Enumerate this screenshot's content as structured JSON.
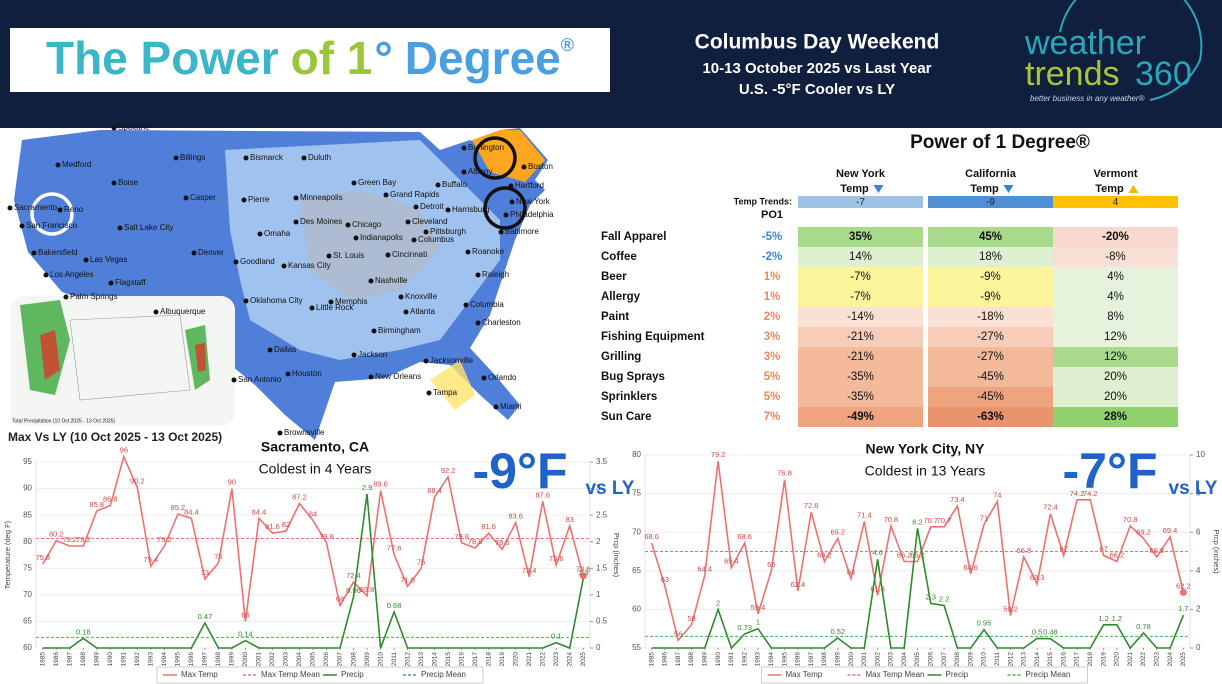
{
  "header": {
    "title_parts": [
      {
        "text": "The Power",
        "color": "#3bb6c8"
      },
      {
        "text": "of 1",
        "color": "#9cc63a"
      },
      {
        "text": "°",
        "color": "#4a9fe0"
      },
      {
        "text": "Degree",
        "color": "#4a9fe0"
      },
      {
        "text": "®",
        "color": "#4a9fe0"
      }
    ],
    "headline": "Columbus Day Weekend",
    "subline1": "10-13 October 2025 vs Last Year",
    "subline2": "U.S. -5°F Cooler vs LY",
    "logo": {
      "word1": "weather",
      "word2": "trends",
      "word3": "360",
      "tagline": "better business in any weather®"
    }
  },
  "map": {
    "cities": [
      "Spokane",
      "Medford",
      "Boise",
      "Billings",
      "Bismarck",
      "Duluth",
      "Burlington",
      "Boston",
      "Albany",
      "Hartford",
      "Green Bay",
      "Grand Rapids",
      "Buffalo",
      "New York",
      "Casper",
      "Minneapolis",
      "Detroit",
      "Harrisburg",
      "Philadelphia",
      "Reno",
      "Sacramento",
      "San Francisco",
      "Salt Lake City",
      "Pierre",
      "Cleveland",
      "Des Moines",
      "Chicago",
      "Omaha",
      "Pittsburgh",
      "Baltimore",
      "Indianapolis",
      "Columbus",
      "Denver",
      "Cincinnati",
      "Goodland",
      "Kansas City",
      "St. Louis",
      "Bakersfield",
      "Las Vegas",
      "Los Angeles",
      "Roanoke",
      "Flagstaff",
      "Nashville",
      "Knoxville",
      "Raleigh",
      "Palm Springs",
      "Albuquerque",
      "Oklahoma City",
      "Little Rock",
      "Memphis",
      "Atlanta",
      "Columbia",
      "Birmingham",
      "Charleston",
      "Dallas",
      "Jackson",
      "Houston",
      "San Antonio",
      "New Orleans",
      "Jacksonville",
      "Orlando",
      "Tampa",
      "Miami",
      "Brownsville"
    ],
    "inset_caption": "Total Precipitation (10 Oct 2025 - 13 Oct 2025)"
  },
  "table": {
    "title": "Power of 1 Degree®",
    "columns": [
      {
        "name": "New York",
        "sub": "Temp",
        "trend": "-7",
        "color": "#9dc3e6",
        "arrow": "down",
        "arrow_color": "#3a7fd0"
      },
      {
        "name": "California",
        "sub": "Temp",
        "trend": "-9",
        "color": "#4f8fd6",
        "arrow": "down",
        "arrow_color": "#3a7fd0"
      },
      {
        "name": "Vermont",
        "sub": "Temp",
        "trend": "4",
        "color": "#ffc000",
        "arrow": "up",
        "arrow_color": "#f5b800"
      }
    ],
    "trend_label": "Temp Trends:",
    "po1_label": "PO1",
    "rows": [
      {
        "name": "Fall Apparel",
        "po1": "-5%",
        "values": [
          "35%",
          "45%",
          "-20%"
        ],
        "colors": [
          "#a9d98a",
          "#a9d98a",
          "#f9d9cf"
        ],
        "bold": true
      },
      {
        "name": "Coffee",
        "po1": "-2%",
        "values": [
          "14%",
          "18%",
          "-8%"
        ],
        "colors": [
          "#dff0d0",
          "#dff0d0",
          "#f9e0d6"
        ],
        "bold": false
      },
      {
        "name": "Beer",
        "po1": "1%",
        "values": [
          "-7%",
          "-9%",
          "4%"
        ],
        "colors": [
          "#fbf49a",
          "#fbf49a",
          "#e6f3dc"
        ],
        "bold": false
      },
      {
        "name": "Allergy",
        "po1": "1%",
        "values": [
          "-7%",
          "-9%",
          "4%"
        ],
        "colors": [
          "#fbf49a",
          "#fbf49a",
          "#e6f3dc"
        ],
        "bold": false
      },
      {
        "name": "Paint",
        "po1": "2%",
        "values": [
          "-14%",
          "-18%",
          "8%"
        ],
        "colors": [
          "#fbe0d6",
          "#fbe0d6",
          "#e6f3dc"
        ],
        "bold": false
      },
      {
        "name": "Fishing Equipment",
        "po1": "3%",
        "values": [
          "-21%",
          "-27%",
          "12%"
        ],
        "colors": [
          "#f6cdb8",
          "#f6cdb8",
          "#e6f3dc"
        ],
        "bold": false
      },
      {
        "name": "Grilling",
        "po1": "3%",
        "values": [
          "-21%",
          "-27%",
          "12%"
        ],
        "colors": [
          "#f2b99a",
          "#f2b99a",
          "#a9d98a"
        ],
        "bold": false
      },
      {
        "name": "Bug Sprays",
        "po1": "5%",
        "values": [
          "-35%",
          "-45%",
          "20%"
        ],
        "colors": [
          "#f2b99a",
          "#f2b99a",
          "#dff0d0"
        ],
        "bold": false
      },
      {
        "name": "Sprinklers",
        "po1": "5%",
        "values": [
          "-35%",
          "-45%",
          "20%"
        ],
        "colors": [
          "#f2b99a",
          "#eea47e",
          "#dff0d0"
        ],
        "bold": false
      },
      {
        "name": "Sun Care",
        "po1": "7%",
        "values": [
          "-49%",
          "-63%",
          "28%"
        ],
        "colors": [
          "#eea47e",
          "#e9946c",
          "#8fd16b"
        ],
        "bold": true
      }
    ]
  },
  "chart_heading": "Max Vs LY (10 Oct 2025 - 13 Oct 2025)",
  "chart_data": [
    {
      "type": "line",
      "title": "Sacramento, CA",
      "subtitle": "Coldest in 4 Years",
      "annotation": "-9°F",
      "annotation_suffix": "vs LY",
      "y_label": "Temperature (deg F)",
      "y2_label": "Prcp (inches)",
      "x": [
        1985,
        1986,
        1987,
        1988,
        1989,
        1990,
        1991,
        1992,
        1993,
        1994,
        1995,
        1996,
        1997,
        1998,
        1999,
        2000,
        2001,
        2002,
        2003,
        2004,
        2005,
        2006,
        2007,
        2008,
        2009,
        2010,
        2011,
        2012,
        2013,
        2014,
        2015,
        2016,
        2017,
        2018,
        2019,
        2020,
        2021,
        2022,
        2023,
        2024,
        2025
      ],
      "xlim": [
        1984.5,
        2025.5
      ],
      "ylim": [
        60,
        95
      ],
      "yticks": [
        60,
        65,
        70,
        75,
        80,
        85,
        90,
        95
      ],
      "y2lim": [
        0,
        3.5
      ],
      "y2ticks": [
        0,
        0.5,
        1,
        1.5,
        2,
        2.5,
        3,
        3.5
      ],
      "series": [
        {
          "name": "Max Temp",
          "color": "#f07070",
          "values": [
            75.8,
            80.2,
            79.2,
            79.2,
            85.8,
            86.8,
            96,
            90.2,
            75.4,
            79.2,
            85.2,
            84.4,
            73,
            76,
            90,
            65,
            84.4,
            81.6,
            82,
            87.2,
            84,
            79.8,
            68,
            72.4,
            69.8,
            89.6,
            77.6,
            71.6,
            75,
            88.4,
            92.2,
            79.8,
            78.8,
            81.6,
            78.6,
            83.6,
            73.4,
            87.6,
            75.6,
            83,
            73.6
          ]
        },
        {
          "name": "Max Temp Mean",
          "color": "#f07070",
          "value": 80.6
        },
        {
          "name": "Precip",
          "color": "#2e8b2e",
          "axis": "y2",
          "values": [
            0,
            0,
            0,
            0.18,
            0,
            0,
            0,
            0,
            0,
            0,
            0,
            0,
            0.47,
            0,
            0,
            0.14,
            0,
            0,
            0,
            0,
            0,
            0,
            0,
            0.96,
            2.9,
            0,
            0.68,
            0,
            0,
            0,
            0,
            0,
            0,
            0,
            0,
            0,
            0,
            0,
            0.1,
            0,
            1.3
          ]
        },
        {
          "name": "Precip Mean",
          "color": "#4caf50",
          "axis": "y2",
          "value": 0.2
        }
      ]
    },
    {
      "type": "line",
      "title": "New York City, NY",
      "subtitle": "Coldest in 13 Years",
      "annotation": "-7°F",
      "annotation_suffix": "vs LY",
      "y_label": "",
      "y2_label": "Prcp (inches)",
      "x": [
        1985,
        1986,
        1987,
        1988,
        1989,
        1990,
        1991,
        1992,
        1993,
        1994,
        1995,
        1996,
        1997,
        1998,
        1999,
        2000,
        2001,
        2002,
        2003,
        2004,
        2005,
        2006,
        2007,
        2008,
        2009,
        2010,
        2011,
        2012,
        2013,
        2014,
        2015,
        2016,
        2017,
        2018,
        2019,
        2020,
        2021,
        2022,
        2023,
        2024,
        2025
      ],
      "xlim": [
        1984.5,
        2025.5
      ],
      "ylim": [
        55,
        80
      ],
      "yticks": [
        55,
        60,
        65,
        70,
        75,
        80
      ],
      "y2lim": [
        0,
        10
      ],
      "y2ticks": [
        0,
        2,
        4,
        6,
        8,
        10
      ],
      "series": [
        {
          "name": "Max Temp",
          "color": "#f07070",
          "values": [
            68.6,
            63,
            56,
            58,
            64.4,
            79.2,
            65.4,
            68.6,
            59.4,
            65,
            76.8,
            62.4,
            72.6,
            66.2,
            69.2,
            64,
            71.4,
            61.8,
            70.8,
            66.2,
            66.2,
            70.7,
            70.7,
            73.4,
            64.6,
            71,
            74,
            59.2,
            66.8,
            63.3,
            72.4,
            67,
            74.2,
            74.2,
            67,
            66.2,
            70.8,
            69.2,
            66.8,
            69.4,
            62.2
          ]
        },
        {
          "name": "Max Temp Mean",
          "color": "#f07070",
          "value": 67.5
        },
        {
          "name": "Precip",
          "color": "#2e8b2e",
          "axis": "y2",
          "values": [
            0,
            0,
            0,
            0,
            0,
            2,
            0,
            0.73,
            1,
            0,
            0,
            0,
            0,
            0,
            0.52,
            0,
            0,
            4.6,
            0,
            0,
            6.2,
            2.3,
            2.2,
            0,
            0,
            0.95,
            0,
            0,
            0,
            0.5,
            0.48,
            0,
            0,
            0,
            1.2,
            1.2,
            0,
            0.78,
            0,
            0,
            1.7
          ]
        },
        {
          "name": "Precip Mean",
          "color": "#4caf50",
          "axis": "y2",
          "value": 0.6
        }
      ]
    }
  ]
}
